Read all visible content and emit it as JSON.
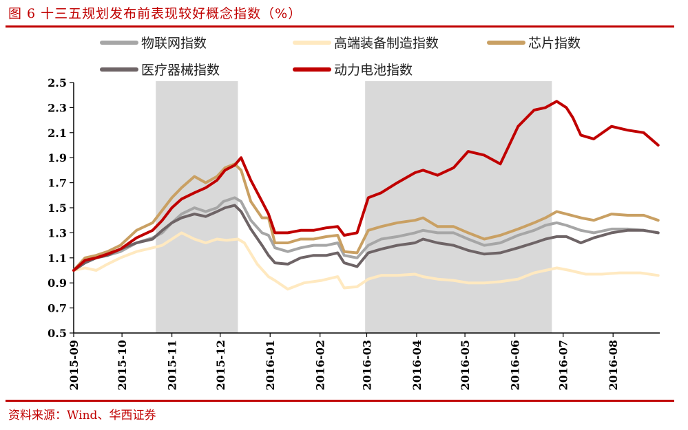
{
  "header": {
    "title": "图 6 十三五规划发布前表现较好概念指数（%）"
  },
  "footer": {
    "source": "资料来源：Wind、华西证券"
  },
  "chart_data": {
    "type": "line",
    "title": "",
    "xlabel": "",
    "ylabel": "",
    "ylim": [
      0.5,
      2.5
    ],
    "yticks": [
      "0.5",
      "0.7",
      "0.9",
      "1.1",
      "1.3",
      "1.5",
      "1.7",
      "1.9",
      "2.1",
      "2.3",
      "2.5"
    ],
    "xticks": [
      "2015-09",
      "2015-10",
      "2015-11",
      "2015-12",
      "2016-01",
      "2016-02",
      "2016-03",
      "2016-04",
      "2016-05",
      "2016-06",
      "2016-07",
      "2016-08"
    ],
    "grid": false,
    "legend_position": "top",
    "shaded_periods": [
      {
        "start": "2015-10-22",
        "end": "2015-12-12"
      },
      {
        "start": "2016-02-29",
        "end": "2016-06-24"
      }
    ],
    "series": [
      {
        "name": "物联网指数",
        "color": "#a6a6a6",
        "points": [
          [
            "2015-09-01",
            1.0
          ],
          [
            "2015-09-08",
            1.07
          ],
          [
            "2015-09-15",
            1.1
          ],
          [
            "2015-09-22",
            1.12
          ],
          [
            "2015-09-30",
            1.15
          ],
          [
            "2015-10-10",
            1.22
          ],
          [
            "2015-10-20",
            1.26
          ],
          [
            "2015-10-26",
            1.3
          ],
          [
            "2015-11-01",
            1.38
          ],
          [
            "2015-11-07",
            1.45
          ],
          [
            "2015-11-15",
            1.5
          ],
          [
            "2015-11-22",
            1.47
          ],
          [
            "2015-11-29",
            1.5
          ],
          [
            "2015-12-03",
            1.55
          ],
          [
            "2015-12-10",
            1.58
          ],
          [
            "2015-12-14",
            1.55
          ],
          [
            "2015-12-20",
            1.4
          ],
          [
            "2015-12-27",
            1.3
          ],
          [
            "2015-12-31",
            1.28
          ],
          [
            "2016-01-04",
            1.18
          ],
          [
            "2016-01-12",
            1.15
          ],
          [
            "2016-01-20",
            1.18
          ],
          [
            "2016-01-28",
            1.2
          ],
          [
            "2016-02-05",
            1.2
          ],
          [
            "2016-02-12",
            1.22
          ],
          [
            "2016-02-16",
            1.12
          ],
          [
            "2016-02-24",
            1.1
          ],
          [
            "2016-03-02",
            1.2
          ],
          [
            "2016-03-10",
            1.25
          ],
          [
            "2016-03-20",
            1.27
          ],
          [
            "2016-03-31",
            1.3
          ],
          [
            "2016-04-05",
            1.32
          ],
          [
            "2016-04-14",
            1.3
          ],
          [
            "2016-04-24",
            1.3
          ],
          [
            "2016-05-03",
            1.25
          ],
          [
            "2016-05-13",
            1.2
          ],
          [
            "2016-05-23",
            1.22
          ],
          [
            "2016-06-03",
            1.28
          ],
          [
            "2016-06-13",
            1.32
          ],
          [
            "2016-06-20",
            1.36
          ],
          [
            "2016-06-27",
            1.38
          ],
          [
            "2016-07-03",
            1.36
          ],
          [
            "2016-07-12",
            1.32
          ],
          [
            "2016-07-20",
            1.3
          ],
          [
            "2016-07-31",
            1.33
          ],
          [
            "2016-08-10",
            1.33
          ],
          [
            "2016-08-20",
            1.32
          ],
          [
            "2016-08-29",
            1.3
          ]
        ]
      },
      {
        "name": "高端装备制造指数",
        "color": "#ffe9c0",
        "points": [
          [
            "2015-09-01",
            1.0
          ],
          [
            "2015-09-08",
            1.02
          ],
          [
            "2015-09-15",
            1.0
          ],
          [
            "2015-09-22",
            1.05
          ],
          [
            "2015-09-30",
            1.1
          ],
          [
            "2015-10-10",
            1.15
          ],
          [
            "2015-10-20",
            1.18
          ],
          [
            "2015-10-26",
            1.2
          ],
          [
            "2015-11-01",
            1.25
          ],
          [
            "2015-11-07",
            1.3
          ],
          [
            "2015-11-15",
            1.25
          ],
          [
            "2015-11-22",
            1.22
          ],
          [
            "2015-11-29",
            1.25
          ],
          [
            "2015-12-05",
            1.24
          ],
          [
            "2015-12-12",
            1.25
          ],
          [
            "2015-12-16",
            1.22
          ],
          [
            "2015-12-24",
            1.05
          ],
          [
            "2015-12-31",
            0.95
          ],
          [
            "2016-01-04",
            0.92
          ],
          [
            "2016-01-12",
            0.85
          ],
          [
            "2016-01-22",
            0.9
          ],
          [
            "2016-02-02",
            0.92
          ],
          [
            "2016-02-12",
            0.95
          ],
          [
            "2016-02-16",
            0.86
          ],
          [
            "2016-02-24",
            0.87
          ],
          [
            "2016-03-02",
            0.93
          ],
          [
            "2016-03-10",
            0.96
          ],
          [
            "2016-03-20",
            0.96
          ],
          [
            "2016-03-31",
            0.97
          ],
          [
            "2016-04-05",
            0.95
          ],
          [
            "2016-04-14",
            0.93
          ],
          [
            "2016-04-24",
            0.92
          ],
          [
            "2016-05-03",
            0.9
          ],
          [
            "2016-05-13",
            0.9
          ],
          [
            "2016-05-23",
            0.91
          ],
          [
            "2016-06-03",
            0.93
          ],
          [
            "2016-06-13",
            0.98
          ],
          [
            "2016-06-20",
            1.0
          ],
          [
            "2016-06-27",
            1.02
          ],
          [
            "2016-07-05",
            1.0
          ],
          [
            "2016-07-15",
            0.97
          ],
          [
            "2016-07-25",
            0.97
          ],
          [
            "2016-08-05",
            0.98
          ],
          [
            "2016-08-18",
            0.98
          ],
          [
            "2016-08-29",
            0.96
          ]
        ]
      },
      {
        "name": "芯片指数",
        "color": "#c9a063",
        "points": [
          [
            "2015-09-01",
            1.0
          ],
          [
            "2015-09-08",
            1.1
          ],
          [
            "2015-09-15",
            1.12
          ],
          [
            "2015-09-22",
            1.15
          ],
          [
            "2015-09-30",
            1.2
          ],
          [
            "2015-10-10",
            1.32
          ],
          [
            "2015-10-20",
            1.38
          ],
          [
            "2015-10-26",
            1.48
          ],
          [
            "2015-11-01",
            1.58
          ],
          [
            "2015-11-07",
            1.66
          ],
          [
            "2015-11-15",
            1.75
          ],
          [
            "2015-11-22",
            1.7
          ],
          [
            "2015-11-29",
            1.75
          ],
          [
            "2015-12-04",
            1.82
          ],
          [
            "2015-12-10",
            1.85
          ],
          [
            "2015-12-14",
            1.8
          ],
          [
            "2015-12-20",
            1.55
          ],
          [
            "2015-12-27",
            1.42
          ],
          [
            "2015-12-31",
            1.42
          ],
          [
            "2016-01-04",
            1.22
          ],
          [
            "2016-01-12",
            1.22
          ],
          [
            "2016-01-20",
            1.25
          ],
          [
            "2016-01-28",
            1.25
          ],
          [
            "2016-02-05",
            1.27
          ],
          [
            "2016-02-12",
            1.28
          ],
          [
            "2016-02-16",
            1.15
          ],
          [
            "2016-02-24",
            1.14
          ],
          [
            "2016-03-02",
            1.32
          ],
          [
            "2016-03-10",
            1.35
          ],
          [
            "2016-03-20",
            1.38
          ],
          [
            "2016-03-31",
            1.4
          ],
          [
            "2016-04-05",
            1.42
          ],
          [
            "2016-04-14",
            1.35
          ],
          [
            "2016-04-24",
            1.35
          ],
          [
            "2016-05-03",
            1.3
          ],
          [
            "2016-05-13",
            1.25
          ],
          [
            "2016-05-23",
            1.28
          ],
          [
            "2016-06-03",
            1.33
          ],
          [
            "2016-06-13",
            1.38
          ],
          [
            "2016-06-20",
            1.42
          ],
          [
            "2016-06-27",
            1.47
          ],
          [
            "2016-07-03",
            1.45
          ],
          [
            "2016-07-12",
            1.42
          ],
          [
            "2016-07-20",
            1.4
          ],
          [
            "2016-07-31",
            1.45
          ],
          [
            "2016-08-10",
            1.44
          ],
          [
            "2016-08-20",
            1.44
          ],
          [
            "2016-08-29",
            1.4
          ]
        ]
      },
      {
        "name": "医疗器械指数",
        "color": "#6e6466",
        "points": [
          [
            "2015-09-01",
            1.0
          ],
          [
            "2015-09-08",
            1.06
          ],
          [
            "2015-09-15",
            1.1
          ],
          [
            "2015-09-22",
            1.12
          ],
          [
            "2015-09-30",
            1.17
          ],
          [
            "2015-10-10",
            1.22
          ],
          [
            "2015-10-20",
            1.25
          ],
          [
            "2015-10-26",
            1.32
          ],
          [
            "2015-11-01",
            1.38
          ],
          [
            "2015-11-07",
            1.42
          ],
          [
            "2015-11-15",
            1.45
          ],
          [
            "2015-11-22",
            1.43
          ],
          [
            "2015-11-29",
            1.47
          ],
          [
            "2015-12-04",
            1.5
          ],
          [
            "2015-12-10",
            1.52
          ],
          [
            "2015-12-14",
            1.47
          ],
          [
            "2015-12-20",
            1.33
          ],
          [
            "2015-12-27",
            1.2
          ],
          [
            "2015-12-31",
            1.12
          ],
          [
            "2016-01-04",
            1.06
          ],
          [
            "2016-01-12",
            1.05
          ],
          [
            "2016-01-20",
            1.1
          ],
          [
            "2016-01-28",
            1.12
          ],
          [
            "2016-02-05",
            1.12
          ],
          [
            "2016-02-12",
            1.14
          ],
          [
            "2016-02-16",
            1.06
          ],
          [
            "2016-02-24",
            1.03
          ],
          [
            "2016-03-02",
            1.14
          ],
          [
            "2016-03-10",
            1.17
          ],
          [
            "2016-03-20",
            1.2
          ],
          [
            "2016-03-31",
            1.22
          ],
          [
            "2016-04-05",
            1.25
          ],
          [
            "2016-04-14",
            1.22
          ],
          [
            "2016-04-24",
            1.2
          ],
          [
            "2016-05-03",
            1.16
          ],
          [
            "2016-05-13",
            1.13
          ],
          [
            "2016-05-23",
            1.14
          ],
          [
            "2016-06-03",
            1.18
          ],
          [
            "2016-06-13",
            1.22
          ],
          [
            "2016-06-20",
            1.25
          ],
          [
            "2016-06-27",
            1.27
          ],
          [
            "2016-07-03",
            1.27
          ],
          [
            "2016-07-12",
            1.22
          ],
          [
            "2016-07-20",
            1.26
          ],
          [
            "2016-07-31",
            1.3
          ],
          [
            "2016-08-10",
            1.32
          ],
          [
            "2016-08-20",
            1.32
          ],
          [
            "2016-08-29",
            1.3
          ]
        ]
      },
      {
        "name": "动力电池指数",
        "color": "#c00000",
        "points": [
          [
            "2015-09-01",
            1.0
          ],
          [
            "2015-09-08",
            1.08
          ],
          [
            "2015-09-15",
            1.1
          ],
          [
            "2015-09-22",
            1.13
          ],
          [
            "2015-09-30",
            1.17
          ],
          [
            "2015-10-10",
            1.26
          ],
          [
            "2015-10-20",
            1.32
          ],
          [
            "2015-10-26",
            1.4
          ],
          [
            "2015-11-01",
            1.5
          ],
          [
            "2015-11-07",
            1.57
          ],
          [
            "2015-11-15",
            1.62
          ],
          [
            "2015-11-22",
            1.66
          ],
          [
            "2015-11-29",
            1.72
          ],
          [
            "2015-12-04",
            1.8
          ],
          [
            "2015-12-10",
            1.84
          ],
          [
            "2015-12-14",
            1.9
          ],
          [
            "2015-12-20",
            1.72
          ],
          [
            "2015-12-27",
            1.55
          ],
          [
            "2015-12-31",
            1.45
          ],
          [
            "2016-01-04",
            1.3
          ],
          [
            "2016-01-12",
            1.3
          ],
          [
            "2016-01-20",
            1.32
          ],
          [
            "2016-01-28",
            1.32
          ],
          [
            "2016-02-05",
            1.34
          ],
          [
            "2016-02-12",
            1.35
          ],
          [
            "2016-02-16",
            1.28
          ],
          [
            "2016-02-24",
            1.3
          ],
          [
            "2016-03-02",
            1.58
          ],
          [
            "2016-03-10",
            1.62
          ],
          [
            "2016-03-20",
            1.7
          ],
          [
            "2016-03-31",
            1.78
          ],
          [
            "2016-04-05",
            1.8
          ],
          [
            "2016-04-14",
            1.76
          ],
          [
            "2016-04-24",
            1.82
          ],
          [
            "2016-05-03",
            1.95
          ],
          [
            "2016-05-13",
            1.92
          ],
          [
            "2016-05-23",
            1.85
          ],
          [
            "2016-06-03",
            2.15
          ],
          [
            "2016-06-13",
            2.28
          ],
          [
            "2016-06-20",
            2.3
          ],
          [
            "2016-06-27",
            2.35
          ],
          [
            "2016-07-03",
            2.3
          ],
          [
            "2016-07-07",
            2.22
          ],
          [
            "2016-07-12",
            2.08
          ],
          [
            "2016-07-20",
            2.05
          ],
          [
            "2016-07-31",
            2.15
          ],
          [
            "2016-08-10",
            2.12
          ],
          [
            "2016-08-20",
            2.1
          ],
          [
            "2016-08-29",
            2.0
          ]
        ]
      }
    ]
  }
}
